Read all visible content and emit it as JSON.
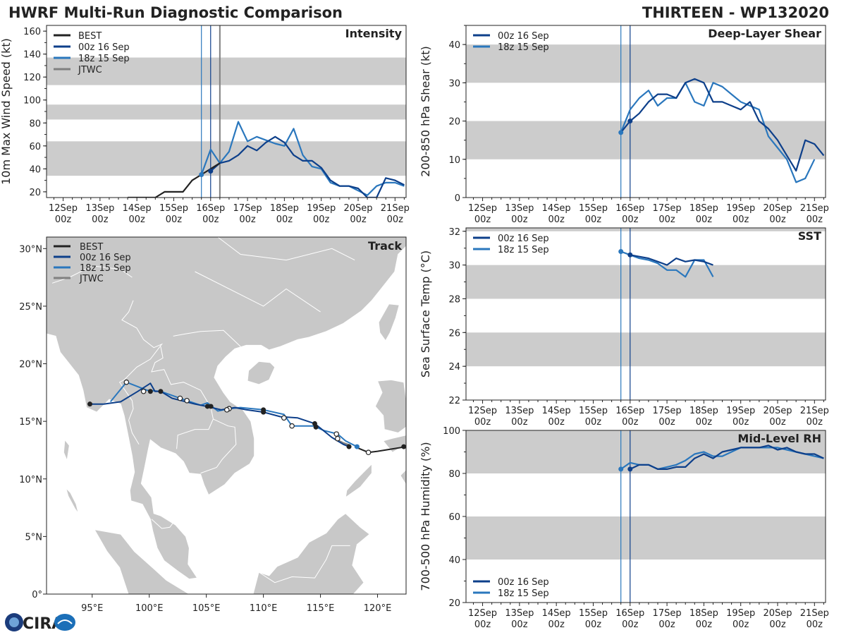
{
  "titles": {
    "main": "HWRF Multi-Run Diagnostic Comparison",
    "storm": "THIRTEEN - WP132020"
  },
  "colors": {
    "best": "#222222",
    "run_00z": "#0d3f8a",
    "run_18z": "#2a77bd",
    "jtwc": "#808080",
    "band": "#cccccc",
    "land": "#c8c8c8",
    "border": "#ffffff"
  },
  "legend": {
    "best": "BEST",
    "run_00z": "00z 16 Sep",
    "run_18z": "18z 15 Sep",
    "jtwc": "JTWC"
  },
  "time_axis": {
    "day_labels": [
      "12Sep",
      "13Sep",
      "14Sep",
      "15Sep",
      "16Sep",
      "17Sep",
      "18Sep",
      "19Sep",
      "20Sep",
      "21Sep"
    ],
    "hour_label": "00z",
    "xlim_days": [
      11.55,
      21.3
    ]
  },
  "logo": {
    "text": "CIRA"
  },
  "chart_data": [
    {
      "id": "intensity",
      "type": "line",
      "title": "Intensity",
      "ylabel": "10m Max Wind Speed (kt)",
      "ylim": [
        15,
        165
      ],
      "yticks": [
        20,
        40,
        60,
        80,
        100,
        120,
        140,
        160
      ],
      "bands": [
        [
          34,
          64
        ],
        [
          83,
          96
        ],
        [
          113,
          137
        ]
      ],
      "vlines": [
        {
          "x": 15.75,
          "series": "run_18z"
        },
        {
          "x": 16.0,
          "series": "run_00z"
        },
        {
          "x": 16.25,
          "series": "jtwc"
        }
      ],
      "legend_series": [
        "best",
        "run_00z",
        "run_18z",
        "jtwc"
      ],
      "series": [
        {
          "name": "run_18z",
          "x": [
            15.75,
            16.0,
            16.25,
            16.5,
            16.75,
            17.0,
            17.25,
            17.5,
            17.75,
            18.0,
            18.25,
            18.5,
            18.75,
            19.0,
            19.25,
            19.5,
            19.75,
            20.0,
            20.25,
            20.5,
            20.75,
            21.0,
            21.25
          ],
          "values": [
            35,
            57,
            45,
            55,
            81,
            64,
            68,
            65,
            62,
            60,
            75,
            52,
            42,
            40,
            28,
            25,
            25,
            21,
            17,
            25,
            28,
            28,
            25
          ]
        },
        {
          "name": "run_00z",
          "x": [
            16.0,
            16.25,
            16.5,
            16.75,
            17.0,
            17.25,
            17.5,
            17.75,
            18.0,
            18.25,
            18.5,
            18.75,
            19.0,
            19.25,
            19.5,
            19.75,
            20.0,
            20.25,
            20.5,
            20.75,
            21.0,
            21.25
          ],
          "values": [
            38,
            45,
            47,
            52,
            60,
            56,
            63,
            68,
            63,
            52,
            47,
            47,
            41,
            30,
            25,
            25,
            23,
            15,
            15,
            32,
            30,
            26
          ]
        },
        {
          "name": "best",
          "x": [
            13.75,
            14.0,
            14.25,
            14.5,
            14.75,
            15.0,
            15.25,
            15.5,
            15.75,
            16.0,
            16.25
          ],
          "values": [
            15,
            15,
            15,
            15,
            20,
            20,
            20,
            30,
            35,
            40,
            45
          ]
        }
      ],
      "markers": [
        {
          "series": "run_18z",
          "x": 15.75,
          "y": 35
        },
        {
          "series": "run_00z",
          "x": 16.0,
          "y": 38
        }
      ]
    },
    {
      "id": "shear",
      "type": "line",
      "title": "Deep-Layer Shear",
      "ylabel": "200-850 hPa Shear (kt)",
      "ylim": [
        0,
        45
      ],
      "yticks": [
        0,
        10,
        20,
        30,
        40
      ],
      "bands": [
        [
          10,
          20
        ],
        [
          30,
          40
        ]
      ],
      "vlines": [
        {
          "x": 15.75,
          "series": "run_18z"
        },
        {
          "x": 16.0,
          "series": "run_00z"
        }
      ],
      "legend_series": [
        "run_00z",
        "run_18z"
      ],
      "series": [
        {
          "name": "run_18z",
          "x": [
            15.75,
            16.0,
            16.25,
            16.5,
            16.75,
            17.0,
            17.25,
            17.5,
            17.75,
            18.0,
            18.25,
            18.5,
            18.75,
            19.0,
            19.25,
            19.5,
            19.75,
            20.0,
            20.25,
            20.5,
            20.75,
            21.0
          ],
          "values": [
            17,
            23,
            26,
            28,
            24,
            26,
            26,
            30,
            25,
            24,
            30,
            29,
            27,
            25,
            24,
            23,
            16,
            13,
            10,
            4,
            5,
            10
          ]
        },
        {
          "name": "run_00z",
          "x": [
            15.75,
            16.0,
            16.25,
            16.5,
            16.75,
            17.0,
            17.25,
            17.5,
            17.75,
            18.0,
            18.25,
            18.5,
            18.75,
            19.0,
            19.25,
            19.5,
            19.75,
            20.0,
            20.25,
            20.5,
            20.75,
            21.0,
            21.25
          ],
          "values": [
            17,
            20,
            22,
            25,
            27,
            27,
            26,
            30,
            31,
            30,
            25,
            25,
            24,
            23,
            25,
            20,
            18,
            15,
            11,
            7,
            15,
            14,
            11
          ]
        }
      ],
      "markers": [
        {
          "series": "run_18z",
          "x": 15.75,
          "y": 17
        },
        {
          "series": "run_00z",
          "x": 16.0,
          "y": 20
        }
      ]
    },
    {
      "id": "sst",
      "type": "line",
      "title": "SST",
      "ylabel": "Sea Surface Temp (°C)",
      "ylim": [
        22,
        32.2
      ],
      "yticks": [
        22,
        24,
        26,
        28,
        30,
        32
      ],
      "bands": [
        [
          24,
          26
        ],
        [
          28,
          30
        ],
        [
          32,
          33
        ]
      ],
      "vlines": [
        {
          "x": 15.75,
          "series": "run_18z"
        },
        {
          "x": 16.0,
          "series": "run_00z"
        }
      ],
      "legend_series": [
        "run_00z",
        "run_18z"
      ],
      "series": [
        {
          "name": "run_18z",
          "x": [
            15.75,
            16.0,
            16.25,
            16.5,
            16.75,
            17.0,
            17.25,
            17.5,
            17.75,
            18.0,
            18.25
          ],
          "values": [
            30.8,
            30.6,
            30.4,
            30.3,
            30.1,
            29.7,
            29.7,
            29.3,
            30.3,
            30.3,
            29.3
          ]
        },
        {
          "name": "run_00z",
          "x": [
            16.0,
            16.25,
            16.5,
            16.75,
            17.0,
            17.25,
            17.5,
            17.75,
            18.0,
            18.25
          ],
          "values": [
            30.6,
            30.5,
            30.4,
            30.2,
            30.0,
            30.4,
            30.2,
            30.3,
            30.2,
            30.0
          ]
        }
      ],
      "markers": [
        {
          "series": "run_18z",
          "x": 15.75,
          "y": 30.8
        },
        {
          "series": "run_00z",
          "x": 16.0,
          "y": 30.6
        }
      ]
    },
    {
      "id": "rh",
      "type": "line",
      "title": "Mid-Level RH",
      "ylabel": "700-500 hPa Humidity (%)",
      "ylim": [
        20,
        100
      ],
      "yticks": [
        20,
        40,
        60,
        80,
        100
      ],
      "bands": [
        [
          40,
          60
        ],
        [
          80,
          100
        ]
      ],
      "legend_position": "lower-left",
      "vlines": [
        {
          "x": 15.75,
          "series": "run_18z"
        },
        {
          "x": 16.0,
          "series": "run_00z"
        }
      ],
      "legend_series": [
        "run_00z",
        "run_18z"
      ],
      "series": [
        {
          "name": "run_18z",
          "x": [
            15.75,
            16.0,
            16.25,
            16.5,
            16.75,
            17.0,
            17.25,
            17.5,
            17.75,
            18.0,
            18.25,
            18.5,
            18.75,
            19.0,
            19.25,
            19.5,
            19.75,
            20.0,
            20.25,
            20.5,
            20.75,
            21.0,
            21.25
          ],
          "values": [
            82,
            85,
            84,
            84,
            82,
            83,
            84,
            86,
            89,
            90,
            88,
            88,
            90,
            92,
            92,
            92,
            92,
            92,
            91,
            90,
            89,
            88,
            87
          ]
        },
        {
          "name": "run_00z",
          "x": [
            16.0,
            16.25,
            16.5,
            16.75,
            17.0,
            17.25,
            17.5,
            17.75,
            18.0,
            18.25,
            18.5,
            18.75,
            19.0,
            19.25,
            19.5,
            19.75,
            20.0,
            20.25,
            20.5,
            20.75,
            21.0,
            21.25
          ],
          "values": [
            82,
            84,
            84,
            82,
            82,
            83,
            83,
            87,
            89,
            87,
            90,
            91,
            92,
            92,
            92,
            93,
            91,
            92,
            90,
            89,
            89,
            87
          ]
        }
      ],
      "markers": [
        {
          "series": "run_18z",
          "x": 15.75,
          "y": 82
        },
        {
          "series": "run_00z",
          "x": 16.0,
          "y": 82
        }
      ]
    },
    {
      "id": "track",
      "type": "scatter",
      "title": "Track",
      "lon_range": [
        91,
        122.5
      ],
      "lat_range": [
        0,
        31
      ],
      "xticks": [
        95,
        100,
        105,
        110,
        115,
        120
      ],
      "xtick_labels": [
        "95°E",
        "100°E",
        "105°E",
        "110°E",
        "115°E",
        "120°E"
      ],
      "yticks": [
        0,
        5,
        10,
        15,
        20,
        25,
        30
      ],
      "ytick_labels": [
        "0°",
        "5°N",
        "10°N",
        "15°N",
        "20°N",
        "25°N",
        "30°N"
      ],
      "legend_series": [
        "best",
        "run_00z",
        "run_18z",
        "jtwc"
      ],
      "tracks": [
        {
          "name": "best",
          "lon": [
            122.5,
            120.0,
            119.2,
            118.0
          ],
          "lat": [
            12.8,
            12.4,
            12.3,
            12.8
          ]
        },
        {
          "name": "jtwc",
          "lon": [
            117.6,
            117.0,
            116.4
          ],
          "lat": [
            12.9,
            13.1,
            13.4
          ]
        },
        {
          "name": "run_18z",
          "lon": [
            118.2,
            117.2,
            116.5,
            115.3,
            114.4,
            112.5,
            111.8,
            110.0,
            108.0,
            107.0,
            106.0,
            105.1,
            104.5,
            103.3,
            102.7,
            101.0,
            99.8,
            98.0,
            96.6
          ],
          "lat": [
            12.8,
            13.3,
            13.9,
            14.2,
            14.6,
            14.6,
            15.6,
            16.0,
            16.2,
            16.1,
            15.9,
            16.6,
            16.4,
            16.8,
            17.0,
            17.6,
            17.7,
            18.4,
            16.7
          ]
        },
        {
          "name": "run_00z",
          "lon": [
            117.5,
            117.0,
            116.0,
            114.5,
            113.0,
            111.5,
            110.0,
            108.5,
            107.5,
            106.3,
            105.0,
            104.0,
            102.0,
            101.0,
            100.5,
            100.1,
            99.0,
            97.5,
            96.0,
            94.8
          ],
          "lat": [
            12.8,
            13.0,
            13.6,
            14.8,
            15.3,
            15.4,
            15.8,
            16.0,
            16.2,
            16.0,
            16.3,
            16.5,
            17.0,
            17.6,
            17.6,
            18.3,
            17.6,
            16.7,
            16.5,
            16.5
          ]
        }
      ],
      "points_filled": [
        {
          "lon": 117.5,
          "lat": 12.8
        },
        {
          "lon": 114.5,
          "lat": 14.8
        },
        {
          "lon": 114.6,
          "lat": 14.5
        },
        {
          "lon": 110.0,
          "lat": 15.8
        },
        {
          "lon": 110.0,
          "lat": 16.0
        },
        {
          "lon": 105.1,
          "lat": 16.3
        },
        {
          "lon": 105.4,
          "lat": 16.3
        },
        {
          "lon": 101.0,
          "lat": 17.6
        },
        {
          "lon": 100.1,
          "lat": 17.6
        },
        {
          "lon": 94.8,
          "lat": 16.5
        },
        {
          "lon": 122.3,
          "lat": 12.8
        }
      ],
      "points_open": [
        {
          "lon": 119.2,
          "lat": 12.3
        },
        {
          "lon": 116.4,
          "lat": 13.9
        },
        {
          "lon": 116.5,
          "lat": 13.5
        },
        {
          "lon": 112.5,
          "lat": 14.6
        },
        {
          "lon": 111.8,
          "lat": 15.3
        },
        {
          "lon": 107.0,
          "lat": 16.1
        },
        {
          "lon": 106.8,
          "lat": 16.0
        },
        {
          "lon": 103.3,
          "lat": 16.8
        },
        {
          "lon": 102.7,
          "lat": 17.0
        },
        {
          "lon": 99.5,
          "lat": 17.6
        },
        {
          "lon": 98.0,
          "lat": 18.4
        }
      ],
      "point_18z": {
        "lon": 118.2,
        "lat": 12.8
      }
    }
  ]
}
